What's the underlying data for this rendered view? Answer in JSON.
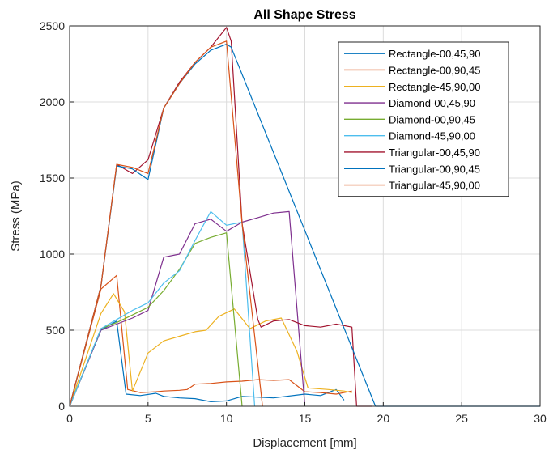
{
  "chart_data": {
    "type": "line",
    "title": "All Shape Stress",
    "xlabel": "Displacement [mm]",
    "ylabel": "Stress (MPa)",
    "xlim": [
      0,
      30
    ],
    "ylim": [
      0,
      2500
    ],
    "xticks": [
      0,
      5,
      10,
      15,
      20,
      25,
      30
    ],
    "yticks": [
      0,
      500,
      1000,
      1500,
      2000,
      2500
    ],
    "grid": true,
    "legend_position": "top-right",
    "series": [
      {
        "name": "Rectangle-00,45,90",
        "color": "#0072BD",
        "x": [
          0,
          2,
          3,
          3.6,
          4.5,
          5.5,
          6,
          7,
          8,
          9,
          10,
          11,
          13,
          15,
          16,
          17,
          17.5
        ],
        "y": [
          0,
          500,
          560,
          80,
          70,
          85,
          65,
          55,
          50,
          30,
          35,
          65,
          55,
          80,
          70,
          110,
          40
        ]
      },
      {
        "name": "Rectangle-00,90,45",
        "color": "#D95319",
        "x": [
          0,
          2,
          3,
          3.7,
          4.5,
          5.5,
          6,
          7,
          7.5,
          8,
          9,
          10,
          11,
          12,
          13,
          14,
          15,
          16,
          17,
          18
        ],
        "y": [
          0,
          770,
          860,
          110,
          90,
          95,
          100,
          105,
          110,
          145,
          150,
          160,
          165,
          175,
          170,
          175,
          95,
          90,
          80,
          100
        ]
      },
      {
        "name": "Rectangle-45,90,00",
        "color": "#EDB120",
        "x": [
          0,
          2,
          2.8,
          3.5,
          4,
          5,
          6,
          7,
          8,
          8.7,
          9.5,
          10.5,
          11.5,
          12.5,
          13.5,
          14.5,
          15.2,
          16.5,
          17.5,
          18
        ],
        "y": [
          0,
          610,
          740,
          620,
          100,
          350,
          430,
          460,
          490,
          500,
          590,
          640,
          510,
          560,
          580,
          360,
          120,
          110,
          100,
          90
        ]
      },
      {
        "name": "Diamond-00,45,90",
        "color": "#7E2F8E",
        "x": [
          0,
          2,
          3,
          4,
          5,
          6,
          7,
          8,
          9,
          10,
          11,
          12,
          13,
          14,
          15
        ],
        "y": [
          0,
          500,
          540,
          580,
          630,
          980,
          1000,
          1200,
          1230,
          1150,
          1210,
          1240,
          1270,
          1280,
          0
        ]
      },
      {
        "name": "Diamond-00,90,45",
        "color": "#77AC30",
        "x": [
          0,
          2,
          3,
          4,
          5,
          6,
          7,
          8,
          9,
          10,
          11
        ],
        "y": [
          0,
          510,
          550,
          600,
          650,
          760,
          900,
          1070,
          1110,
          1140,
          0
        ]
      },
      {
        "name": "Diamond-45,90,00",
        "color": "#4DBEEE",
        "x": [
          0,
          2,
          3,
          4,
          5,
          6,
          7,
          8,
          9,
          10,
          11,
          11.8
        ],
        "y": [
          0,
          510,
          570,
          630,
          680,
          810,
          890,
          1090,
          1280,
          1190,
          1210,
          0
        ]
      },
      {
        "name": "Triangular-00,45,90",
        "color": "#A2142F",
        "x": [
          0,
          2,
          3,
          4,
          5,
          6,
          7,
          8,
          9,
          10,
          10.3,
          11,
          12,
          12.2,
          13,
          14,
          15,
          16,
          17,
          18,
          18.3,
          19.3
        ],
        "y": [
          0,
          790,
          1590,
          1530,
          1620,
          1960,
          2130,
          2260,
          2360,
          2490,
          2400,
          1200,
          570,
          520,
          560,
          570,
          530,
          520,
          540,
          520,
          0,
          0
        ]
      },
      {
        "name": "Triangular-00,90,45",
        "color": "#0072BD",
        "x": [
          0,
          2,
          3,
          4,
          5,
          6,
          7,
          8,
          9,
          10,
          10.3,
          19.5,
          30
        ],
        "y": [
          0,
          790,
          1580,
          1560,
          1490,
          1960,
          2120,
          2250,
          2340,
          2380,
          2360,
          0,
          0
        ]
      },
      {
        "name": "Triangular-45,90,00",
        "color": "#D95319",
        "x": [
          0,
          2,
          3,
          4,
          5,
          6,
          7,
          8,
          9,
          10,
          11,
          12.3
        ],
        "y": [
          0,
          790,
          1590,
          1570,
          1530,
          1960,
          2120,
          2260,
          2360,
          2400,
          1200,
          0
        ]
      }
    ]
  }
}
